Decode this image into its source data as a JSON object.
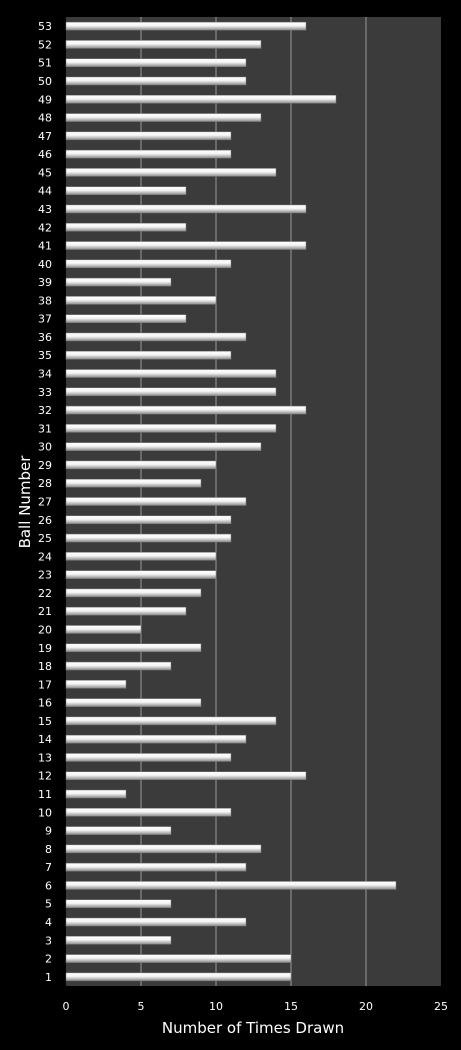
{
  "chart_data": {
    "type": "bar",
    "orientation": "horizontal",
    "xlabel": "Number of Times Drawn",
    "ylabel": "Ball Number",
    "xlim": [
      0,
      25
    ],
    "xticks": [
      0,
      5,
      10,
      15,
      20,
      25
    ],
    "grid": "vertical",
    "categories": [
      "1",
      "2",
      "3",
      "4",
      "5",
      "6",
      "7",
      "8",
      "9",
      "10",
      "11",
      "12",
      "13",
      "14",
      "15",
      "16",
      "17",
      "18",
      "19",
      "20",
      "21",
      "22",
      "23",
      "24",
      "25",
      "26",
      "27",
      "28",
      "29",
      "30",
      "31",
      "32",
      "33",
      "34",
      "35",
      "36",
      "37",
      "38",
      "39",
      "40",
      "41",
      "42",
      "43",
      "44",
      "45",
      "46",
      "47",
      "48",
      "49",
      "50",
      "51",
      "52",
      "53"
    ],
    "values": [
      15,
      15,
      7,
      12,
      7,
      22,
      12,
      13,
      7,
      11,
      4,
      16,
      11,
      12,
      14,
      9,
      4,
      7,
      9,
      5,
      8,
      9,
      10,
      10,
      11,
      11,
      12,
      9,
      10,
      13,
      14,
      16,
      14,
      14,
      11,
      12,
      8,
      10,
      7,
      11,
      16,
      8,
      16,
      8,
      14,
      11,
      11,
      13,
      18,
      12,
      12,
      13,
      16
    ],
    "colors": {
      "background": "#000000",
      "plot_area": "#3b3b3b",
      "gridline": "#9a9a9a",
      "bar": "#e6e6e6",
      "text": "#ffffff"
    }
  }
}
